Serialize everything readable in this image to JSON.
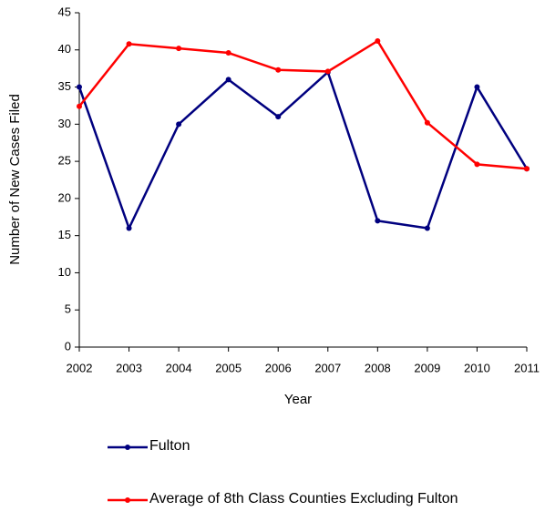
{
  "chart_data": {
    "type": "line",
    "x_label": "Year",
    "y_label": "Number of New Cases Filed",
    "x": [
      2002,
      2003,
      2004,
      2005,
      2006,
      2007,
      2008,
      2009,
      2010,
      2011
    ],
    "xlim": [
      2002,
      2011
    ],
    "xticks": [
      2002,
      2003,
      2004,
      2005,
      2006,
      2007,
      2008,
      2009,
      2010,
      2011
    ],
    "ylim": [
      0,
      45
    ],
    "yticks": [
      0,
      5,
      10,
      15,
      20,
      25,
      30,
      35,
      40,
      45
    ],
    "grid": false,
    "series": [
      {
        "name": "Fulton",
        "color": "#00007f",
        "values": [
          35,
          16,
          30,
          36,
          31,
          37,
          17,
          16,
          35,
          24
        ]
      },
      {
        "name": "Average of 8th Class Counties Excluding Fulton",
        "color": "#ff0000",
        "values": [
          32.4,
          40.8,
          40.2,
          39.6,
          37.3,
          37.1,
          41.2,
          30.2,
          24.6,
          24.0
        ]
      }
    ]
  }
}
